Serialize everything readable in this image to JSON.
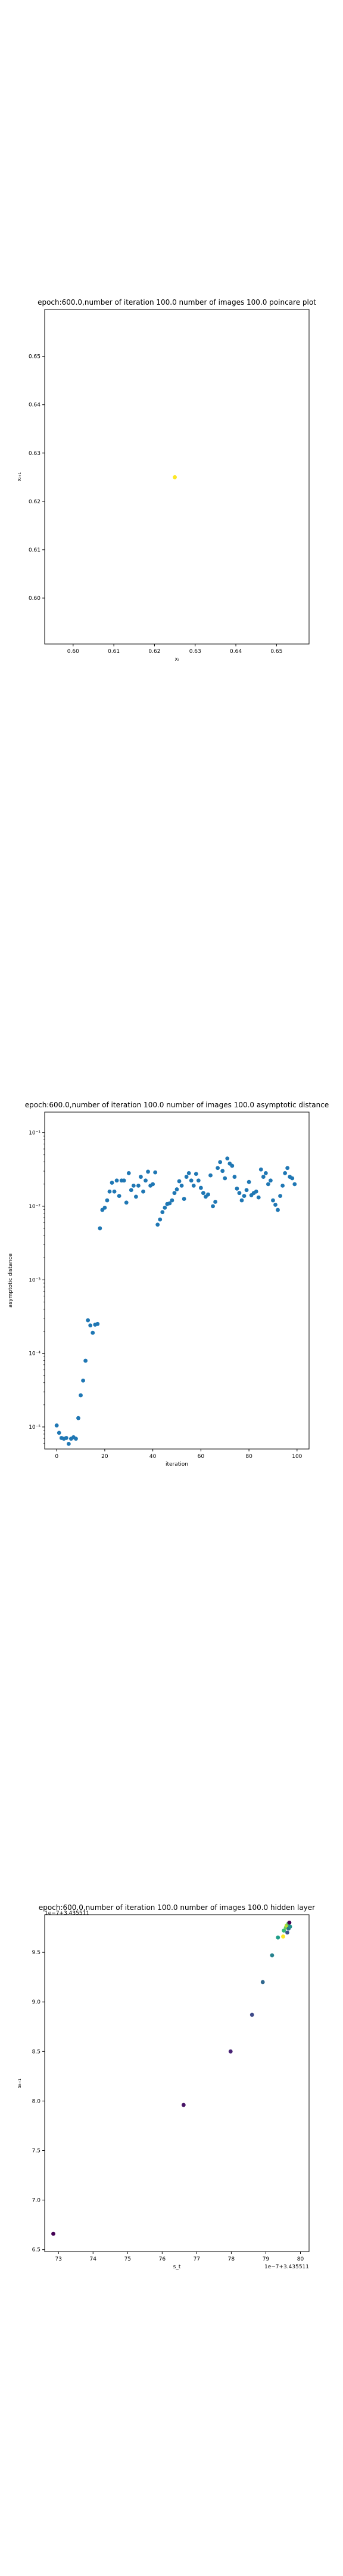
{
  "chart_data": [
    {
      "type": "scatter",
      "title": "epoch:600.0,number of iteration 100.0 number of images 100.0 poincare plot",
      "xlabel": "xᵢ",
      "ylabel": "xᵢ₊₁",
      "xlim": [
        0.593,
        0.658
      ],
      "ylim": [
        0.5905,
        0.6597
      ],
      "xticks": [
        "0.60",
        "0.61",
        "0.62",
        "0.63",
        "0.64",
        "0.65"
      ],
      "xtick_values": [
        0.6,
        0.61,
        0.62,
        0.63,
        0.64,
        0.65
      ],
      "yticks": [
        "0.60",
        "0.61",
        "0.62",
        "0.63",
        "0.64",
        "0.65"
      ],
      "ytick_values": [
        0.6,
        0.61,
        0.62,
        0.63,
        0.64,
        0.65
      ],
      "points": [
        [
          0.625,
          0.625
        ]
      ],
      "point_color": "#fde725",
      "grid": false,
      "legend": "none"
    },
    {
      "type": "scatter",
      "title": "epoch:600.0,number of iteration 100.0  number of images 100.0 asymptotic distance",
      "xlabel": "iteration",
      "ylabel": "asymptotic distance",
      "xlim": [
        -5,
        105
      ],
      "ylim_log10": [
        -5.3,
        -0.72
      ],
      "yscale": "log",
      "xticks": [
        "0",
        "20",
        "40",
        "60",
        "80",
        "100"
      ],
      "xtick_values": [
        0,
        20,
        40,
        60,
        80,
        100
      ],
      "yticks": [
        "10⁻⁵",
        "10⁻⁴",
        "10⁻³",
        "10⁻²",
        "10⁻¹"
      ],
      "ytick_values": [
        -5,
        -4,
        -3,
        -2,
        -1
      ],
      "point_color": "#1f77b4",
      "grid": false,
      "legend": "none",
      "x": [
        0,
        1,
        2,
        3,
        4,
        5,
        6,
        7,
        8,
        9,
        10,
        11,
        12,
        13,
        14,
        15,
        16,
        17,
        18,
        19,
        20,
        21,
        22,
        23,
        24,
        25,
        26,
        27,
        28,
        29,
        30,
        31,
        32,
        33,
        34,
        35,
        36,
        37,
        38,
        39,
        40,
        41,
        42,
        43,
        44,
        45,
        46,
        47,
        48,
        49,
        50,
        51,
        52,
        53,
        54,
        55,
        56,
        57,
        58,
        59,
        60,
        61,
        62,
        63,
        64,
        65,
        66,
        67,
        68,
        69,
        70,
        71,
        72,
        73,
        74,
        75,
        76,
        77,
        78,
        79,
        80,
        81,
        82,
        83,
        84,
        85,
        86,
        87,
        88,
        89,
        90,
        91,
        92,
        93,
        94,
        95,
        96,
        97,
        98,
        99
      ],
      "y_log10": [
        -4.98,
        -5.08,
        -5.15,
        -5.16,
        -5.15,
        -5.23,
        -5.16,
        -5.14,
        -5.16,
        -4.88,
        -4.57,
        -4.37,
        -4.1,
        -3.55,
        -3.62,
        -3.72,
        -3.61,
        -3.6,
        -2.3,
        -2.05,
        -2.02,
        -1.92,
        -1.8,
        -1.68,
        -1.8,
        -1.65,
        -1.86,
        -1.65,
        -1.65,
        -1.95,
        -1.55,
        -1.78,
        -1.72,
        -1.87,
        -1.72,
        -1.6,
        -1.8,
        -1.65,
        -1.53,
        -1.72,
        -1.7,
        -1.54,
        -2.25,
        -2.18,
        -2.08,
        -2.02,
        -1.97,
        -1.96,
        -1.92,
        -1.82,
        -1.77,
        -1.66,
        -1.72,
        -1.9,
        -1.6,
        -1.55,
        -1.65,
        -1.72,
        -1.56,
        -1.65,
        -1.75,
        -1.82,
        -1.87,
        -1.84,
        -1.58,
        -2.0,
        -1.94,
        -1.48,
        -1.4,
        -1.52,
        -1.62,
        -1.35,
        -1.42,
        -1.45,
        -1.6,
        -1.76,
        -1.82,
        -1.92,
        -1.86,
        -1.78,
        -1.67,
        -1.85,
        -1.82,
        -1.8,
        -1.88,
        -1.5,
        -1.6,
        -1.55,
        -1.7,
        -1.65,
        -1.92,
        -1.98,
        -2.05,
        -1.86,
        -1.72,
        -1.55,
        -1.48,
        -1.6,
        -1.62,
        -1.7
      ]
    },
    {
      "type": "scatter",
      "title": "epoch:600.0,number of iteration 100.0  number of images 100.0 hidden layer",
      "xlabel": "s_t",
      "ylabel": "sₜ₊₁",
      "xlim": [
        72.6,
        80.25
      ],
      "ylim": [
        6.48,
        9.88
      ],
      "xoffset": "1e−7+3.435511",
      "yoffset": "1e−7+3.435511",
      "xticks": [
        "73",
        "74",
        "75",
        "76",
        "77",
        "78",
        "79",
        "80"
      ],
      "xtick_values": [
        73,
        74,
        75,
        76,
        77,
        78,
        79,
        80
      ],
      "yticks": [
        "6.5",
        "7.0",
        "7.5",
        "8.0",
        "8.5",
        "9.0",
        "9.5"
      ],
      "ytick_values": [
        6.5,
        7.0,
        7.5,
        8.0,
        8.5,
        9.0,
        9.5
      ],
      "grid": false,
      "legend": "none",
      "points": [
        [
          72.85,
          6.66,
          "#440154"
        ],
        [
          76.62,
          7.96,
          "#471365"
        ],
        [
          77.98,
          8.5,
          "#482475"
        ],
        [
          78.6,
          8.87,
          "#3e4a89"
        ],
        [
          78.91,
          9.2,
          "#31688e"
        ],
        [
          79.18,
          9.47,
          "#26828e"
        ],
        [
          79.35,
          9.65,
          "#1f9e89"
        ],
        [
          79.5,
          9.66,
          "#fde725"
        ],
        [
          79.52,
          9.72,
          "#35b779"
        ],
        [
          79.58,
          9.75,
          "#6ece58"
        ],
        [
          79.6,
          9.77,
          "#b5de2b"
        ],
        [
          79.62,
          9.7,
          "#3b528b"
        ],
        [
          79.65,
          9.79,
          "#5ec962"
        ],
        [
          79.66,
          9.74,
          "#2c728e"
        ],
        [
          79.68,
          9.8,
          "#440154"
        ],
        [
          79.7,
          9.76,
          "#21918c"
        ]
      ]
    }
  ]
}
